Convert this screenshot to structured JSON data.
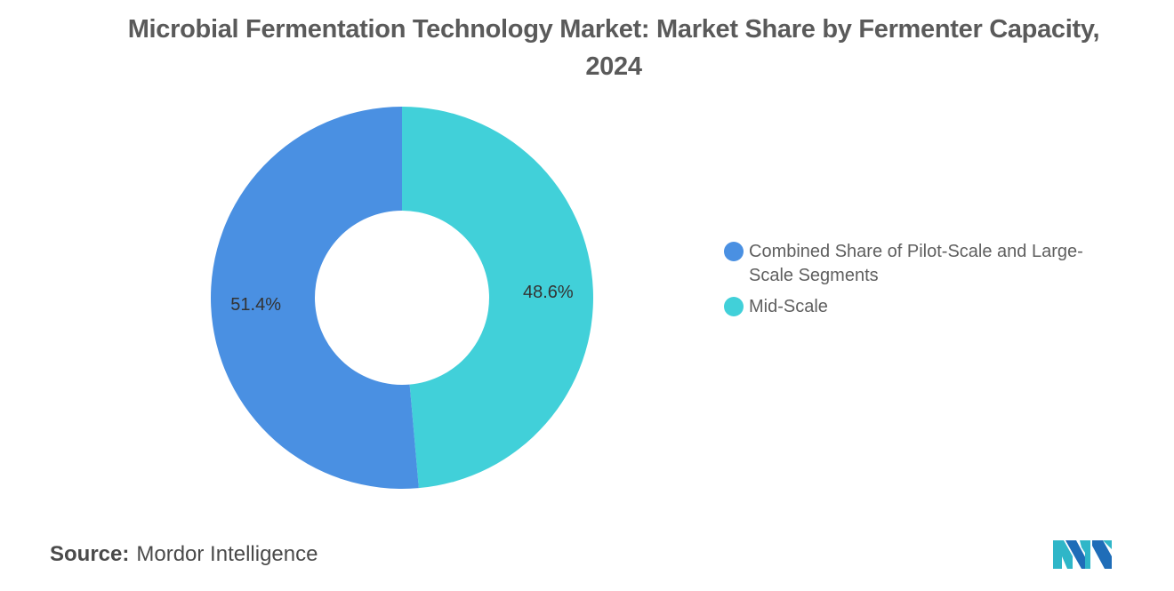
{
  "title": "Microbial Fermentation Technology Market: Market Share by Fermenter Capacity, 2024",
  "chart_data": {
    "type": "pie",
    "style": "donut",
    "title": "Microbial Fermentation Technology Market: Market Share by Fermenter Capacity, 2024",
    "series": [
      {
        "name": "Combined Share of Pilot-Scale and Large-Scale Segments",
        "value": 51.4,
        "label": "51.4%",
        "color": "#4a90e2"
      },
      {
        "name": "Mid-Scale",
        "value": 48.6,
        "label": "48.6%",
        "color": "#41d0d9"
      }
    ],
    "legend_position": "right"
  },
  "source": {
    "label": "Source:",
    "value": "Mordor Intelligence"
  },
  "logo": {
    "icon": "mordor-intelligence-logo-icon",
    "colors": [
      "#2fb6c8",
      "#1f6db8"
    ]
  }
}
